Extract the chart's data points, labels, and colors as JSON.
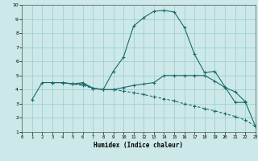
{
  "xlabel": "Humidex (Indice chaleur)",
  "bg_color": "#cce8e8",
  "grid_color": "#99cccc",
  "line_color": "#1a6b6b",
  "xlim": [
    0,
    23
  ],
  "ylim": [
    1,
    10
  ],
  "xticks": [
    0,
    1,
    2,
    3,
    4,
    5,
    6,
    7,
    8,
    9,
    10,
    11,
    12,
    13,
    14,
    15,
    16,
    17,
    18,
    19,
    20,
    21,
    22,
    23
  ],
  "yticks": [
    1,
    2,
    3,
    4,
    5,
    6,
    7,
    8,
    9,
    10
  ],
  "curve1_x": [
    1,
    2,
    3,
    4,
    5,
    6,
    7,
    8,
    9,
    10,
    11,
    12,
    13,
    14,
    15,
    16,
    17,
    18,
    19,
    20,
    21,
    22
  ],
  "curve1_y": [
    3.3,
    4.5,
    4.5,
    4.5,
    4.4,
    4.5,
    4.1,
    4.0,
    5.3,
    6.3,
    8.5,
    9.1,
    9.55,
    9.6,
    9.5,
    8.4,
    6.5,
    5.2,
    5.3,
    4.2,
    3.1,
    3.1
  ],
  "curve2_x": [
    3,
    4,
    5,
    6,
    7,
    8,
    9,
    10,
    11,
    12,
    13,
    14,
    15,
    16,
    17,
    18,
    19,
    20,
    21,
    22,
    23
  ],
  "curve2_y": [
    4.5,
    4.5,
    4.4,
    4.4,
    4.1,
    4.0,
    4.0,
    4.15,
    4.3,
    4.4,
    4.5,
    5.0,
    5.0,
    5.0,
    5.0,
    5.0,
    4.6,
    4.15,
    3.85,
    3.15,
    1.4
  ],
  "curve3_x": [
    3,
    4,
    5,
    6,
    7,
    8,
    9,
    10,
    11,
    12,
    13,
    14,
    15,
    16,
    17,
    18,
    19,
    20,
    21,
    22,
    23
  ],
  "curve3_y": [
    4.5,
    4.5,
    4.4,
    4.3,
    4.1,
    4.0,
    4.0,
    3.9,
    3.78,
    3.65,
    3.5,
    3.35,
    3.2,
    3.0,
    2.85,
    2.65,
    2.5,
    2.3,
    2.1,
    1.85,
    1.4
  ]
}
